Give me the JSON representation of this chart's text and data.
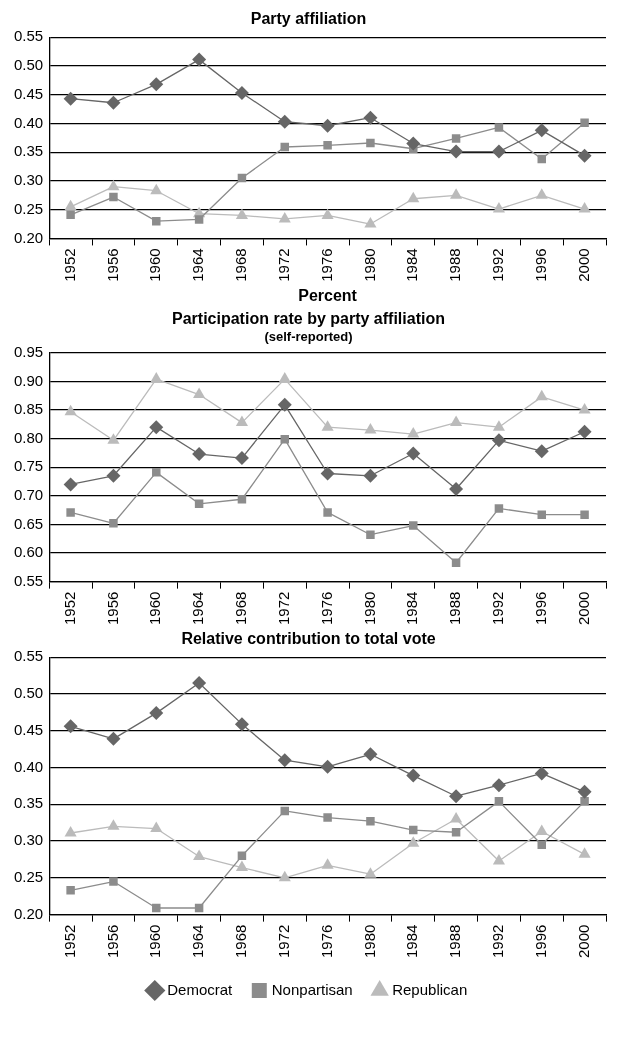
{
  "chart_data": [
    {
      "type": "line",
      "title": "Party affiliation",
      "xlabel": "Percent",
      "categories": [
        "1952",
        "1956",
        "1960",
        "1964",
        "1968",
        "1972",
        "1976",
        "1980",
        "1984",
        "1988",
        "1992",
        "1996",
        "2000"
      ],
      "ylim": [
        0.2,
        0.55
      ],
      "yticks": [
        {
          "value": 0.2,
          "label": "0.20"
        },
        {
          "value": 0.25,
          "label": "0.25"
        },
        {
          "value": 0.3,
          "label": "0.30"
        },
        {
          "value": 0.35,
          "label": "0.35"
        },
        {
          "value": 0.4,
          "label": "0.40"
        },
        {
          "value": 0.45,
          "label": "0.45"
        },
        {
          "value": 0.5,
          "label": "0.50"
        },
        {
          "value": 0.55,
          "label": "0.55"
        }
      ],
      "grid": "y",
      "legend": false,
      "series": [
        {
          "color": "#666666",
          "marker": "diamond",
          "values": [
            0.443,
            0.436,
            0.468,
            0.511,
            0.453,
            0.403,
            0.396,
            0.41,
            0.365,
            0.351,
            0.351,
            0.388,
            0.344
          ]
        },
        {
          "color": "#8c8c8c",
          "marker": "square",
          "values": [
            0.241,
            0.272,
            0.23,
            0.233,
            0.305,
            0.359,
            0.362,
            0.366,
            0.356,
            0.374,
            0.393,
            0.338,
            0.401
          ]
        },
        {
          "color": "#bbbbbb",
          "marker": "triangle",
          "values": [
            0.255,
            0.29,
            0.283,
            0.243,
            0.24,
            0.234,
            0.24,
            0.225,
            0.269,
            0.275,
            0.251,
            0.275,
            0.251
          ]
        }
      ]
    },
    {
      "type": "line",
      "title": "Participation rate by party affiliation",
      "subtitle": "(self-reported)",
      "categories": [
        "1952",
        "1956",
        "1960",
        "1964",
        "1968",
        "1972",
        "1976",
        "1980",
        "1984",
        "1988",
        "1992",
        "1996",
        "2000"
      ],
      "ylim": [
        0.55,
        0.95
      ],
      "yticks": [
        {
          "value": 0.55,
          "label": "0.55"
        },
        {
          "value": 0.6,
          "label": "0.60"
        },
        {
          "value": 0.65,
          "label": "0.65"
        },
        {
          "value": 0.7,
          "label": "0.70"
        },
        {
          "value": 0.75,
          "label": "0.75"
        },
        {
          "value": 0.8,
          "label": "0.80"
        },
        {
          "value": 0.85,
          "label": "0.85"
        },
        {
          "value": 0.9,
          "label": "0.90"
        },
        {
          "value": 0.95,
          "label": "0.95"
        }
      ],
      "grid": "y",
      "legend": false,
      "series": [
        {
          "color": "#666666",
          "marker": "diamond",
          "values": [
            0.72,
            0.735,
            0.82,
            0.773,
            0.766,
            0.859,
            0.739,
            0.735,
            0.774,
            0.712,
            0.797,
            0.778,
            0.812
          ]
        },
        {
          "color": "#8c8c8c",
          "marker": "square",
          "values": [
            0.671,
            0.652,
            0.741,
            0.686,
            0.694,
            0.799,
            0.671,
            0.632,
            0.648,
            0.583,
            0.678,
            0.667,
            0.667
          ]
        },
        {
          "color": "#bbbbbb",
          "marker": "triangle",
          "values": [
            0.847,
            0.797,
            0.904,
            0.877,
            0.828,
            0.904,
            0.82,
            0.815,
            0.808,
            0.828,
            0.82,
            0.873,
            0.85
          ]
        }
      ]
    },
    {
      "type": "line",
      "title": "Relative contribution to total vote",
      "categories": [
        "1952",
        "1956",
        "1960",
        "1964",
        "1968",
        "1972",
        "1976",
        "1980",
        "1984",
        "1988",
        "1992",
        "1996",
        "2000"
      ],
      "ylim": [
        0.2,
        0.55
      ],
      "yticks": [
        {
          "value": 0.2,
          "label": "0.20"
        },
        {
          "value": 0.25,
          "label": "0.25"
        },
        {
          "value": 0.3,
          "label": "0.30"
        },
        {
          "value": 0.35,
          "label": "0.35"
        },
        {
          "value": 0.4,
          "label": "0.40"
        },
        {
          "value": 0.45,
          "label": "0.45"
        },
        {
          "value": 0.5,
          "label": "0.50"
        },
        {
          "value": 0.55,
          "label": "0.55"
        }
      ],
      "grid": "y",
      "legend": "bottom",
      "series": [
        {
          "name": "Democrat",
          "color": "#666666",
          "marker": "diamond",
          "values": [
            0.456,
            0.439,
            0.474,
            0.515,
            0.459,
            0.41,
            0.401,
            0.418,
            0.389,
            0.361,
            0.376,
            0.392,
            0.367
          ]
        },
        {
          "name": "Nonpartisan",
          "color": "#8c8c8c",
          "marker": "square",
          "values": [
            0.233,
            0.245,
            0.209,
            0.209,
            0.28,
            0.341,
            0.332,
            0.327,
            0.315,
            0.312,
            0.354,
            0.295,
            0.354
          ]
        },
        {
          "name": "Republican",
          "color": "#bbbbbb",
          "marker": "triangle",
          "values": [
            0.311,
            0.32,
            0.317,
            0.279,
            0.264,
            0.25,
            0.267,
            0.255,
            0.297,
            0.33,
            0.273,
            0.313,
            0.282
          ]
        }
      ]
    }
  ]
}
